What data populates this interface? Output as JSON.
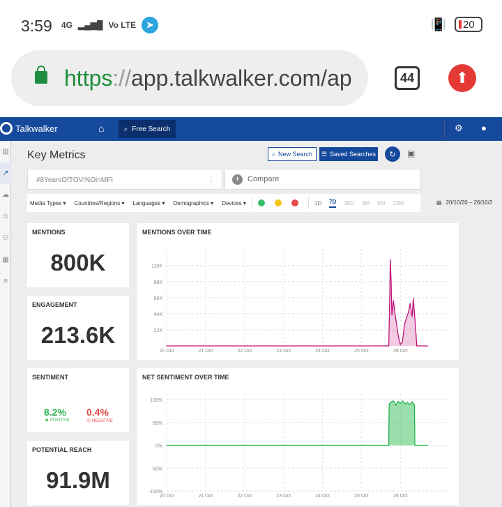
{
  "status_bar": {
    "time": "3:59",
    "network": "4G",
    "volte": "Vo LTE",
    "battery": "20"
  },
  "browser": {
    "url_scheme": "https",
    "url_sep": "://",
    "url_host": "app.talkwalker.com/ap",
    "tab_count": "44"
  },
  "app": {
    "brand": "Talkwalker",
    "nav": {
      "free_search": "Free Search"
    }
  },
  "page": {
    "title": "Key Metrics",
    "new_search": "New Search",
    "saved_searches": "Saved Searches",
    "query": "#8YearsOfTOVINOinMFI",
    "compare": "Compare",
    "filters": [
      "Media Types ▾",
      "Countries/Regions ▾",
      "Languages ▾",
      "Demographics ▾",
      "Devices ▾"
    ],
    "ranges": [
      "1D",
      "7D",
      "30D",
      "3M",
      "6M",
      "13M"
    ],
    "active_range": "7D",
    "date_range": "20/10/20 – 26/10/2"
  },
  "metrics": {
    "mentions_title": "MENTIONS",
    "mentions_value": "800K",
    "engagement_title": "ENGAGEMENT",
    "engagement_value": "213.6K",
    "sentiment_title": "SENTIMENT",
    "positive_pct": "8.2%",
    "positive_label": "POSITIVE",
    "negative_pct": "0.4%",
    "negative_label": "NEGATIVE",
    "reach_title": "POTENTIAL REACH",
    "reach_value": "91.9M"
  },
  "colors": {
    "brand_blue": "#15499b",
    "mentions_line": "#c0127a",
    "sentiment_line": "#1fb548",
    "positive": "#2db24f",
    "negative": "#e64a4a"
  },
  "chart_data": [
    {
      "type": "area",
      "title": "MENTIONS OVER TIME",
      "x_ticks": [
        "20 Oct",
        "21 Oct",
        "22 Oct",
        "23 Oct",
        "24 Oct",
        "25 Oct",
        "26 Oct"
      ],
      "y_ticks": [
        "110K",
        "88K",
        "66K",
        "44K",
        "22K"
      ],
      "ylim": [
        0,
        125000
      ],
      "x": [
        0,
        0.5,
        1,
        1.5,
        2,
        2.5,
        3,
        3.5,
        4,
        4.5,
        5,
        5.5,
        5.7,
        5.72,
        5.74,
        5.76,
        5.78,
        5.82,
        5.86,
        5.9,
        5.95,
        6.0,
        6.05,
        6.1,
        6.15,
        6.2,
        6.25,
        6.3,
        6.33,
        6.36,
        6.42,
        6.48,
        6.52,
        6.6,
        6.7
      ],
      "values": [
        0,
        0,
        0,
        0,
        0,
        0,
        0,
        0,
        0,
        0,
        0,
        0,
        0,
        50000,
        118000,
        90000,
        42000,
        62000,
        44000,
        30000,
        12000,
        2000,
        5000,
        28000,
        38000,
        45000,
        58000,
        40000,
        65000,
        45000,
        0,
        0,
        0,
        0,
        0
      ],
      "grid": true
    },
    {
      "type": "area",
      "title": "NET SENTIMENT OVER TIME",
      "x_ticks": [
        "20 Oct",
        "21 Oct",
        "22 Oct",
        "23 Oct",
        "24 Oct",
        "25 Oct",
        "26 Oct"
      ],
      "y_ticks": [
        "100%",
        "50%",
        "0%",
        "-50%",
        "-100%"
      ],
      "ylim": [
        -100,
        100
      ],
      "x": [
        0,
        1,
        2,
        3,
        4,
        5,
        5.7,
        5.71,
        5.76,
        5.82,
        5.88,
        5.94,
        6.0,
        6.06,
        6.12,
        6.18,
        6.24,
        6.3,
        6.36,
        6.37,
        6.7
      ],
      "values": [
        0,
        0,
        0,
        0,
        0,
        0,
        0,
        90,
        95,
        97,
        88,
        96,
        92,
        97,
        90,
        94,
        89,
        95,
        88,
        0,
        0
      ],
      "grid": true
    }
  ]
}
